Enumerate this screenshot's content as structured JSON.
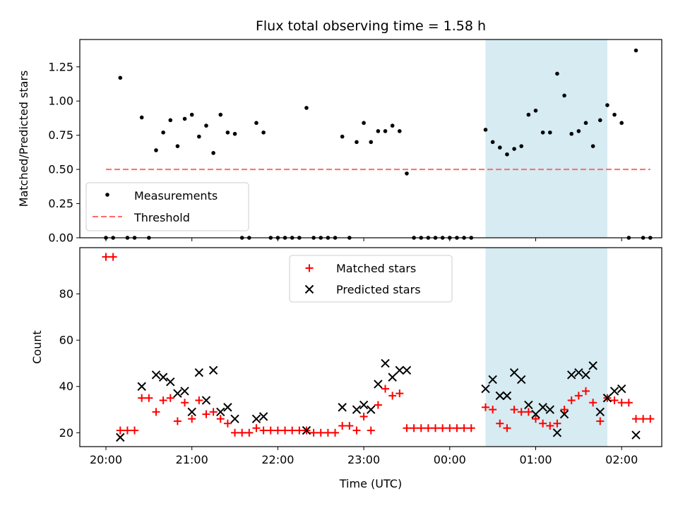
{
  "title": "Flux total observing time = 1.58 h",
  "chart_data": [
    {
      "type": "scatter",
      "ylabel": "Matched/Predicted stars",
      "ylim": [
        0,
        1.45
      ],
      "yticks": [
        "0.00",
        "0.25",
        "0.50",
        "0.75",
        "1.00",
        "1.25"
      ],
      "threshold": 0.5,
      "shaded_span": {
        "start": "00:25",
        "end": "01:50",
        "color": "#add8e6"
      },
      "legend": {
        "placement": "lower-left",
        "entries": [
          "Measurements",
          "Threshold"
        ]
      },
      "colors": {
        "measurements": "#000000",
        "threshold": "#ff6b6b"
      },
      "series": [
        {
          "name": "Measurements",
          "points": [
            [
              "20:00",
              0.0
            ],
            [
              "20:05",
              0.0
            ],
            [
              "20:10",
              1.17
            ],
            [
              "20:15",
              0.0
            ],
            [
              "20:20",
              0.0
            ],
            [
              "20:25",
              0.88
            ],
            [
              "20:30",
              0.0
            ],
            [
              "20:35",
              0.64
            ],
            [
              "20:40",
              0.77
            ],
            [
              "20:45",
              0.86
            ],
            [
              "20:50",
              0.67
            ],
            [
              "20:55",
              0.87
            ],
            [
              "21:00",
              0.9
            ],
            [
              "21:05",
              0.74
            ],
            [
              "21:10",
              0.82
            ],
            [
              "21:15",
              0.62
            ],
            [
              "21:20",
              0.9
            ],
            [
              "21:25",
              0.77
            ],
            [
              "21:30",
              0.76
            ],
            [
              "21:35",
              0.0
            ],
            [
              "21:40",
              0.0
            ],
            [
              "21:45",
              0.84
            ],
            [
              "21:50",
              0.77
            ],
            [
              "21:55",
              0.0
            ],
            [
              "22:00",
              0.0
            ],
            [
              "22:05",
              0.0
            ],
            [
              "22:10",
              0.0
            ],
            [
              "22:15",
              0.0
            ],
            [
              "22:20",
              0.95
            ],
            [
              "22:25",
              0.0
            ],
            [
              "22:30",
              0.0
            ],
            [
              "22:35",
              0.0
            ],
            [
              "22:40",
              0.0
            ],
            [
              "22:45",
              0.74
            ],
            [
              "22:50",
              0.0
            ],
            [
              "22:55",
              0.7
            ],
            [
              "23:00",
              0.84
            ],
            [
              "23:05",
              0.7
            ],
            [
              "23:10",
              0.78
            ],
            [
              "23:15",
              0.78
            ],
            [
              "23:20",
              0.82
            ],
            [
              "23:25",
              0.78
            ],
            [
              "23:30",
              0.47
            ],
            [
              "23:35",
              0.0
            ],
            [
              "23:40",
              0.0
            ],
            [
              "23:45",
              0.0
            ],
            [
              "23:50",
              0.0
            ],
            [
              "23:55",
              0.0
            ],
            [
              "00:00",
              0.0
            ],
            [
              "00:05",
              0.0
            ],
            [
              "00:10",
              0.0
            ],
            [
              "00:15",
              0.0
            ],
            [
              "00:25",
              0.79
            ],
            [
              "00:30",
              0.7
            ],
            [
              "00:35",
              0.66
            ],
            [
              "00:40",
              0.61
            ],
            [
              "00:45",
              0.65
            ],
            [
              "00:50",
              0.67
            ],
            [
              "00:55",
              0.9
            ],
            [
              "01:00",
              0.93
            ],
            [
              "01:05",
              0.77
            ],
            [
              "01:10",
              0.77
            ],
            [
              "01:15",
              1.2
            ],
            [
              "01:20",
              1.04
            ],
            [
              "01:25",
              0.76
            ],
            [
              "01:30",
              0.78
            ],
            [
              "01:35",
              0.84
            ],
            [
              "01:40",
              0.67
            ],
            [
              "01:45",
              0.86
            ],
            [
              "01:50",
              0.97
            ],
            [
              "01:55",
              0.9
            ],
            [
              "02:00",
              0.84
            ],
            [
              "02:05",
              0.0
            ],
            [
              "02:10",
              1.37
            ],
            [
              "02:15",
              0.0
            ],
            [
              "02:20",
              0.0
            ]
          ]
        },
        {
          "name": "Threshold",
          "x_range": [
            "20:00",
            "02:20"
          ],
          "value": 0.5
        }
      ]
    },
    {
      "type": "scatter",
      "ylabel": "Count",
      "xlabel": "Time (UTC)",
      "ylim": [
        14,
        100
      ],
      "yticks": [
        "20",
        "40",
        "60",
        "80"
      ],
      "xticks": [
        "20:00",
        "21:00",
        "22:00",
        "23:00",
        "00:00",
        "01:00",
        "02:00"
      ],
      "shaded_span": {
        "start": "00:25",
        "end": "01:50",
        "color": "#add8e6"
      },
      "legend": {
        "placement": "upper-center",
        "entries": [
          "Matched stars",
          "Predicted stars"
        ]
      },
      "colors": {
        "matched": "#ff0000",
        "predicted": "#000000"
      },
      "series": [
        {
          "name": "Matched stars",
          "points": [
            [
              "20:00",
              96
            ],
            [
              "20:05",
              96
            ],
            [
              "20:10",
              21
            ],
            [
              "20:15",
              21
            ],
            [
              "20:20",
              21
            ],
            [
              "20:25",
              35
            ],
            [
              "20:30",
              35
            ],
            [
              "20:35",
              29
            ],
            [
              "20:40",
              34
            ],
            [
              "20:45",
              35
            ],
            [
              "20:50",
              25
            ],
            [
              "20:55",
              33
            ],
            [
              "21:00",
              26
            ],
            [
              "21:05",
              34
            ],
            [
              "21:10",
              28
            ],
            [
              "21:15",
              29
            ],
            [
              "21:20",
              26
            ],
            [
              "21:25",
              24
            ],
            [
              "21:30",
              20
            ],
            [
              "21:35",
              20
            ],
            [
              "21:40",
              20
            ],
            [
              "21:45",
              22
            ],
            [
              "21:50",
              21
            ],
            [
              "21:55",
              21
            ],
            [
              "22:00",
              21
            ],
            [
              "22:05",
              21
            ],
            [
              "22:10",
              21
            ],
            [
              "22:15",
              21
            ],
            [
              "22:20",
              21
            ],
            [
              "22:25",
              20
            ],
            [
              "22:30",
              20
            ],
            [
              "22:35",
              20
            ],
            [
              "22:40",
              20
            ],
            [
              "22:45",
              23
            ],
            [
              "22:50",
              23
            ],
            [
              "22:55",
              21
            ],
            [
              "23:00",
              27
            ],
            [
              "23:05",
              21
            ],
            [
              "23:10",
              32
            ],
            [
              "23:15",
              39
            ],
            [
              "23:20",
              36
            ],
            [
              "23:25",
              37
            ],
            [
              "23:30",
              22
            ],
            [
              "23:35",
              22
            ],
            [
              "23:40",
              22
            ],
            [
              "23:45",
              22
            ],
            [
              "23:50",
              22
            ],
            [
              "23:55",
              22
            ],
            [
              "00:00",
              22
            ],
            [
              "00:05",
              22
            ],
            [
              "00:10",
              22
            ],
            [
              "00:15",
              22
            ],
            [
              "00:25",
              31
            ],
            [
              "00:30",
              30
            ],
            [
              "00:35",
              24
            ],
            [
              "00:40",
              22
            ],
            [
              "00:45",
              30
            ],
            [
              "00:50",
              29
            ],
            [
              "00:55",
              29
            ],
            [
              "01:00",
              26
            ],
            [
              "01:05",
              24
            ],
            [
              "01:10",
              23
            ],
            [
              "01:15",
              24
            ],
            [
              "01:20",
              30
            ],
            [
              "01:25",
              34
            ],
            [
              "01:30",
              36
            ],
            [
              "01:35",
              38
            ],
            [
              "01:40",
              33
            ],
            [
              "01:45",
              25
            ],
            [
              "01:50",
              35
            ],
            [
              "01:55",
              34
            ],
            [
              "02:00",
              33
            ],
            [
              "02:05",
              33
            ],
            [
              "02:10",
              26
            ],
            [
              "02:15",
              26
            ],
            [
              "02:20",
              26
            ]
          ]
        },
        {
          "name": "Predicted stars",
          "points": [
            [
              "20:10",
              18
            ],
            [
              "20:25",
              40
            ],
            [
              "20:35",
              45
            ],
            [
              "20:40",
              44
            ],
            [
              "20:45",
              42
            ],
            [
              "20:50",
              37
            ],
            [
              "20:55",
              38
            ],
            [
              "21:00",
              29
            ],
            [
              "21:05",
              46
            ],
            [
              "21:10",
              34
            ],
            [
              "21:15",
              47
            ],
            [
              "21:20",
              29
            ],
            [
              "21:25",
              31
            ],
            [
              "21:30",
              26
            ],
            [
              "21:45",
              26
            ],
            [
              "21:50",
              27
            ],
            [
              "22:20",
              21
            ],
            [
              "22:45",
              31
            ],
            [
              "22:55",
              30
            ],
            [
              "23:00",
              32
            ],
            [
              "23:05",
              30
            ],
            [
              "23:10",
              41
            ],
            [
              "23:15",
              50
            ],
            [
              "23:20",
              44
            ],
            [
              "23:25",
              47
            ],
            [
              "23:30",
              47
            ],
            [
              "00:25",
              39
            ],
            [
              "00:30",
              43
            ],
            [
              "00:35",
              36
            ],
            [
              "00:40",
              36
            ],
            [
              "00:45",
              46
            ],
            [
              "00:50",
              43
            ],
            [
              "00:55",
              32
            ],
            [
              "01:00",
              28
            ],
            [
              "01:05",
              31
            ],
            [
              "01:10",
              30
            ],
            [
              "01:15",
              20
            ],
            [
              "01:20",
              28
            ],
            [
              "01:25",
              45
            ],
            [
              "01:30",
              46
            ],
            [
              "01:35",
              45
            ],
            [
              "01:40",
              49
            ],
            [
              "01:45",
              29
            ],
            [
              "01:50",
              35
            ],
            [
              "01:55",
              38
            ],
            [
              "02:00",
              39
            ],
            [
              "02:10",
              19
            ]
          ]
        }
      ]
    }
  ]
}
